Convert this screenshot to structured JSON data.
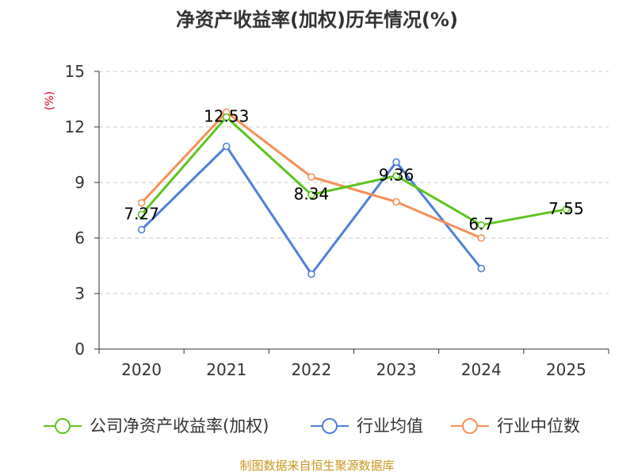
{
  "chart_data": {
    "type": "line",
    "title": "净资产收益率(加权)历年情况(%)",
    "ylabel": "(%)",
    "xlabel": "",
    "categories": [
      "2020",
      "2021",
      "2022",
      "2023",
      "2024",
      "2025"
    ],
    "ylim": [
      0,
      15
    ],
    "yticks": [
      0,
      3,
      6,
      9,
      12,
      15
    ],
    "grid": true,
    "legend_position": "bottom",
    "series": [
      {
        "name": "公司净资产收益率(加权)",
        "color": "#5ec41e",
        "values": [
          7.27,
          12.53,
          8.34,
          9.36,
          6.7,
          7.55
        ],
        "labels": [
          "7.27",
          "12.53",
          "8.34",
          "9.36",
          "6.7",
          "7.55"
        ]
      },
      {
        "name": "行业均值",
        "color": "#4f7fd8",
        "values": [
          6.45,
          10.95,
          4.05,
          10.1,
          4.35,
          null
        ]
      },
      {
        "name": "行业中位数",
        "color": "#f5905a",
        "values": [
          7.9,
          12.8,
          9.3,
          7.95,
          6.0,
          null
        ]
      }
    ],
    "source": "制图数据来自恒生聚源数据库"
  }
}
